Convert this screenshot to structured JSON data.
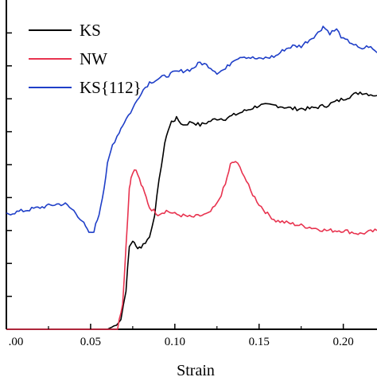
{
  "chart_data": {
    "type": "line",
    "title": "",
    "xlabel": "Strain",
    "ylabel": "",
    "xlim": [
      0.0,
      0.22
    ],
    "ylim": [
      0,
      10
    ],
    "x_ticks": [
      0.0,
      0.05,
      0.1,
      0.15,
      0.2
    ],
    "x_tick_labels": [
      ".00",
      "0.05",
      "0.10",
      "0.15",
      "0.20"
    ],
    "y_ticks": [
      1,
      2,
      3,
      4,
      5,
      6,
      7,
      8,
      9
    ],
    "grid": false,
    "legend": "top-left",
    "series": [
      {
        "name": "KS",
        "color": "#000000",
        "x": [
          0.0,
          0.06,
          0.064,
          0.068,
          0.071,
          0.073,
          0.075,
          0.077,
          0.08,
          0.085,
          0.088,
          0.092,
          0.095,
          0.098,
          0.101,
          0.105,
          0.11,
          0.115,
          0.12,
          0.125,
          0.13,
          0.14,
          0.15,
          0.16,
          0.17,
          0.18,
          0.19,
          0.2,
          0.21,
          0.22
        ],
        "y": [
          0.0,
          0.0,
          0.1,
          0.3,
          1.2,
          2.5,
          2.7,
          2.5,
          2.5,
          2.8,
          3.5,
          5.0,
          5.9,
          6.3,
          6.4,
          6.2,
          6.3,
          6.2,
          6.3,
          6.4,
          6.4,
          6.6,
          6.8,
          6.8,
          6.7,
          6.7,
          6.8,
          7.0,
          7.2,
          7.1
        ]
      },
      {
        "name": "NW",
        "color": "#e8334f",
        "x": [
          0.0,
          0.066,
          0.069,
          0.071,
          0.073,
          0.074,
          0.076,
          0.078,
          0.08,
          0.083,
          0.085,
          0.09,
          0.095,
          0.1,
          0.11,
          0.12,
          0.125,
          0.13,
          0.133,
          0.136,
          0.14,
          0.145,
          0.15,
          0.155,
          0.16,
          0.17,
          0.18,
          0.19,
          0.2,
          0.21,
          0.22
        ],
        "y": [
          0.0,
          0.0,
          0.8,
          2.5,
          4.3,
          4.6,
          4.9,
          4.7,
          4.4,
          4.0,
          3.7,
          3.5,
          3.6,
          3.5,
          3.4,
          3.5,
          3.8,
          4.4,
          5.0,
          5.1,
          4.8,
          4.2,
          3.8,
          3.5,
          3.3,
          3.2,
          3.1,
          3.0,
          3.0,
          2.9,
          3.0
        ]
      },
      {
        "name": "KS{112}",
        "color": "#1f3fc8",
        "x": [
          0.0,
          0.01,
          0.02,
          0.03,
          0.035,
          0.04,
          0.045,
          0.048,
          0.05,
          0.052,
          0.055,
          0.058,
          0.06,
          0.063,
          0.067,
          0.07,
          0.075,
          0.08,
          0.085,
          0.09,
          0.095,
          0.1,
          0.11,
          0.115,
          0.12,
          0.125,
          0.13,
          0.135,
          0.14,
          0.15,
          0.16,
          0.165,
          0.17,
          0.175,
          0.18,
          0.185,
          0.188,
          0.192,
          0.196,
          0.2,
          0.205,
          0.21,
          0.215,
          0.22
        ],
        "y": [
          3.5,
          3.6,
          3.7,
          3.8,
          3.8,
          3.6,
          3.3,
          3.0,
          2.9,
          3.0,
          3.5,
          4.3,
          5.0,
          5.6,
          6.0,
          6.3,
          6.7,
          7.2,
          7.5,
          7.6,
          7.7,
          7.8,
          7.9,
          8.1,
          8.0,
          7.8,
          7.9,
          8.2,
          8.3,
          8.2,
          8.3,
          8.5,
          8.6,
          8.6,
          8.8,
          9.0,
          9.2,
          9.0,
          9.1,
          8.8,
          8.7,
          8.5,
          8.6,
          8.4
        ]
      }
    ]
  }
}
